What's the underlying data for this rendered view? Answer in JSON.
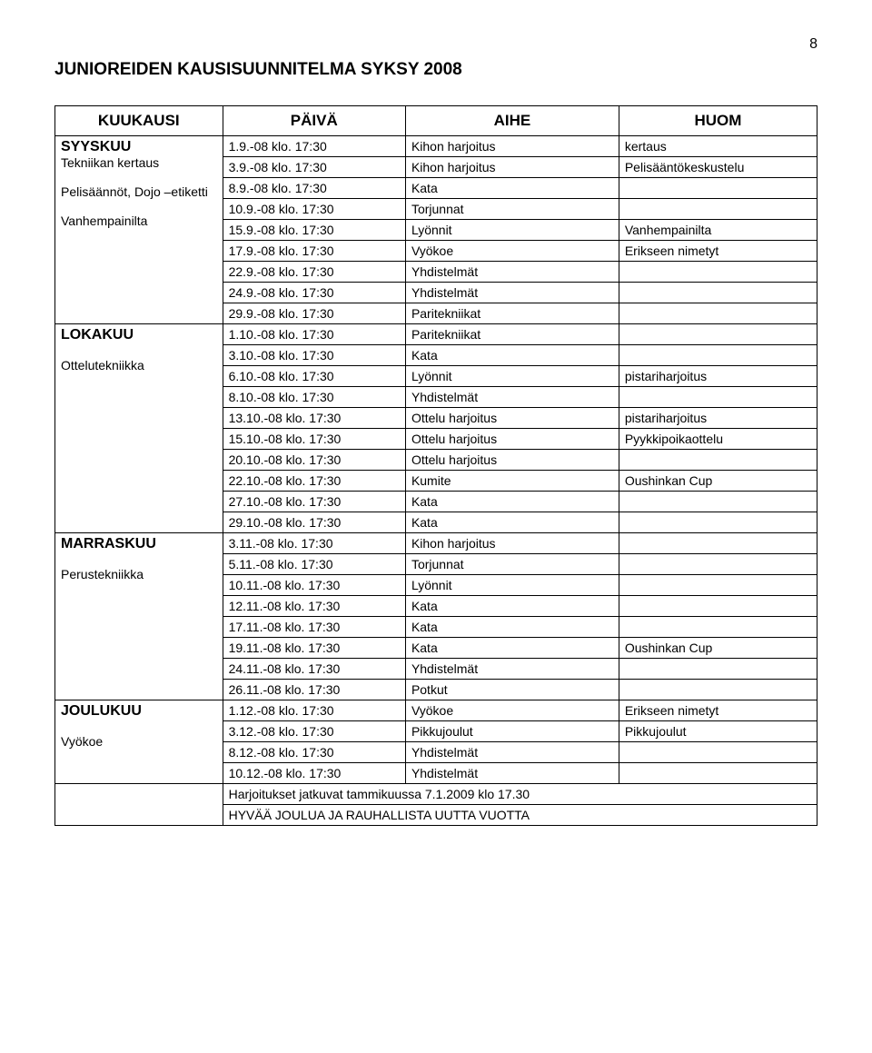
{
  "page_number": "8",
  "title": "JUNIOREIDEN KAUSISUUNNITELMA SYKSY 2008",
  "header": {
    "c1": "KUUKAUSI",
    "c2": "PÄIVÄ",
    "c3": "AIHE",
    "c4": "HUOM"
  },
  "colors": {
    "text": "#000000",
    "border": "#000000",
    "background": "#ffffff"
  },
  "rows": [
    {
      "m": "SYYSKUU",
      "s": "Tekniikan kertaus\n\nPelisäännöt, Dojo –etiketti\n\nVanhempainilta",
      "span": 9,
      "d": "1.9.-08 klo. 17:30",
      "a": "Kihon harjoitus",
      "h": "kertaus"
    },
    {
      "d": "3.9.-08 klo. 17:30",
      "a": "Kihon harjoitus",
      "h": "Pelisääntökeskustelu"
    },
    {
      "d": "8.9.-08 klo. 17:30",
      "a": "Kata",
      "h": ""
    },
    {
      "d": "10.9.-08 klo. 17:30",
      "a": "Torjunnat",
      "h": ""
    },
    {
      "d": "15.9.-08 klo. 17:30",
      "a": "Lyönnit",
      "h": "Vanhempainilta"
    },
    {
      "d": "17.9.-08 klo. 17:30",
      "a": "Vyökoe",
      "h": "Erikseen nimetyt"
    },
    {
      "d": "22.9.-08 klo. 17:30",
      "a": "Yhdistelmät",
      "h": ""
    },
    {
      "d": "24.9.-08 klo. 17:30",
      "a": "Yhdistelmät",
      "h": ""
    },
    {
      "d": "29.9.-08 klo. 17:30",
      "a": "Paritekniikat",
      "h": ""
    },
    {
      "m": "LOKAKUU",
      "s": "\nOttelutekniikka",
      "span": 10,
      "d": "1.10.-08 klo. 17:30",
      "a": "Paritekniikat",
      "h": ""
    },
    {
      "d": "3.10.-08 klo. 17:30",
      "a": "Kata",
      "h": ""
    },
    {
      "d": "6.10.-08 klo. 17:30",
      "a": "Lyönnit",
      "h": "pistariharjoitus"
    },
    {
      "d": "8.10.-08 klo. 17:30",
      "a": "Yhdistelmät",
      "h": ""
    },
    {
      "d": "13.10.-08 klo. 17:30",
      "a": "Ottelu harjoitus",
      "h": "pistariharjoitus"
    },
    {
      "d": "15.10.-08 klo. 17:30",
      "a": "Ottelu harjoitus",
      "h": "Pyykkipoikaottelu"
    },
    {
      "d": "20.10.-08 klo. 17:30",
      "a": "Ottelu harjoitus",
      "h": ""
    },
    {
      "d": "22.10.-08 klo. 17:30",
      "a": "Kumite",
      "h": "Oushinkan Cup"
    },
    {
      "d": "27.10.-08 klo. 17:30",
      "a": "Kata",
      "h": ""
    },
    {
      "d": "29.10.-08 klo. 17:30",
      "a": "Kata",
      "h": ""
    },
    {
      "m": "MARRASKUU",
      "s": "\nPerustekniikka",
      "span": 8,
      "d": "3.11.-08 klo. 17:30",
      "a": "Kihon harjoitus",
      "h": ""
    },
    {
      "d": "5.11.-08 klo. 17:30",
      "a": "Torjunnat",
      "h": ""
    },
    {
      "d": "10.11.-08 klo. 17:30",
      "a": "Lyönnit",
      "h": ""
    },
    {
      "d": "12.11.-08 klo. 17:30",
      "a": "Kata",
      "h": ""
    },
    {
      "d": "17.11.-08 klo. 17:30",
      "a": "Kata",
      "h": ""
    },
    {
      "d": "19.11.-08 klo. 17:30",
      "a": "Kata",
      "h": "Oushinkan Cup"
    },
    {
      "d": "24.11.-08 klo. 17:30",
      "a": "Yhdistelmät",
      "h": ""
    },
    {
      "d": "26.11.-08 klo. 17:30",
      "a": "Potkut",
      "h": ""
    },
    {
      "m": "JOULUKUU",
      "s": "\nVyökoe",
      "span": 4,
      "d": "1.12.-08 klo. 17:30",
      "a": "Vyökoe",
      "h": "Erikseen nimetyt"
    },
    {
      "d": "3.12.-08 klo. 17:30",
      "a": "Pikkujoulut",
      "h": "Pikkujoulut"
    },
    {
      "d": "8.12.-08 klo. 17:30",
      "a": "Yhdistelmät",
      "h": ""
    },
    {
      "d": "10.12.-08 klo. 17:30",
      "a": "Yhdistelmät",
      "h": ""
    }
  ],
  "footer_line1": "Harjoitukset jatkuvat tammikuussa 7.1.2009 klo 17.30",
  "footer_line2": "HYVÄÄ JOULUA JA RAUHALLISTA UUTTA VUOTTA"
}
